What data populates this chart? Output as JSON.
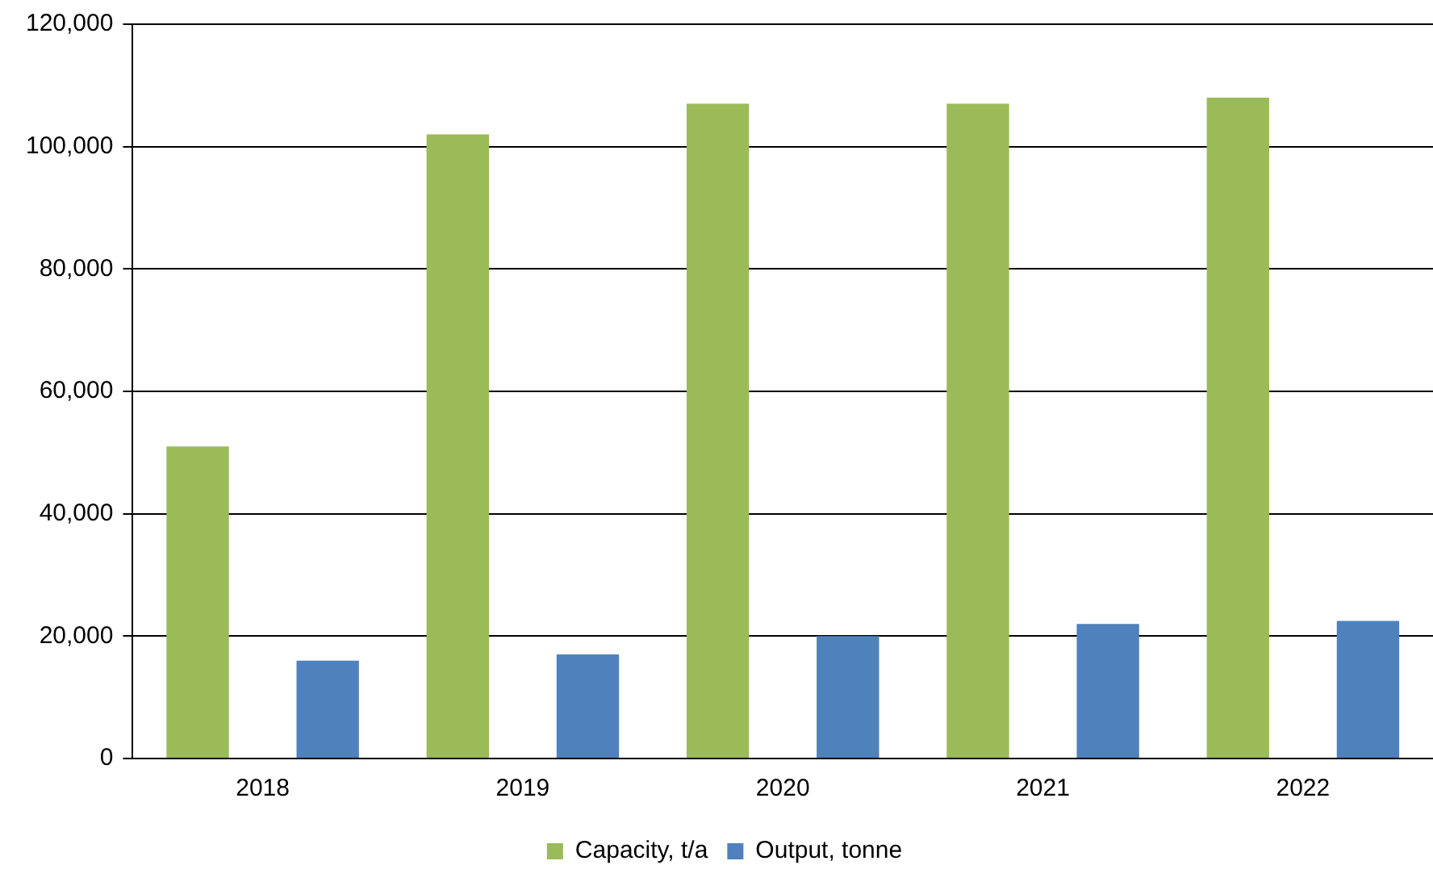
{
  "chart_data": {
    "type": "bar",
    "categories": [
      "2018",
      "2019",
      "2020",
      "2021",
      "2022"
    ],
    "series": [
      {
        "name": "Capacity, t/a",
        "color": "#9bbb59",
        "values": [
          51000,
          102000,
          107000,
          107000,
          108000
        ]
      },
      {
        "name": "Output, tonne",
        "color": "#4f81bd",
        "values": [
          16000,
          17000,
          20000,
          22000,
          22500
        ]
      }
    ],
    "ylim": [
      0,
      120000
    ],
    "yticks": [
      0,
      {
        "value": 20000,
        "label": "20,000"
      },
      {
        "value": 40000,
        "label": "40,000"
      },
      {
        "value": 60000,
        "label": "60,000"
      },
      {
        "value": 80000,
        "label": "80,000"
      },
      {
        "value": 100000,
        "label": "100,000"
      },
      {
        "value": 120000,
        "label": "120,000"
      }
    ],
    "grid": "y",
    "legend": "bottom"
  }
}
